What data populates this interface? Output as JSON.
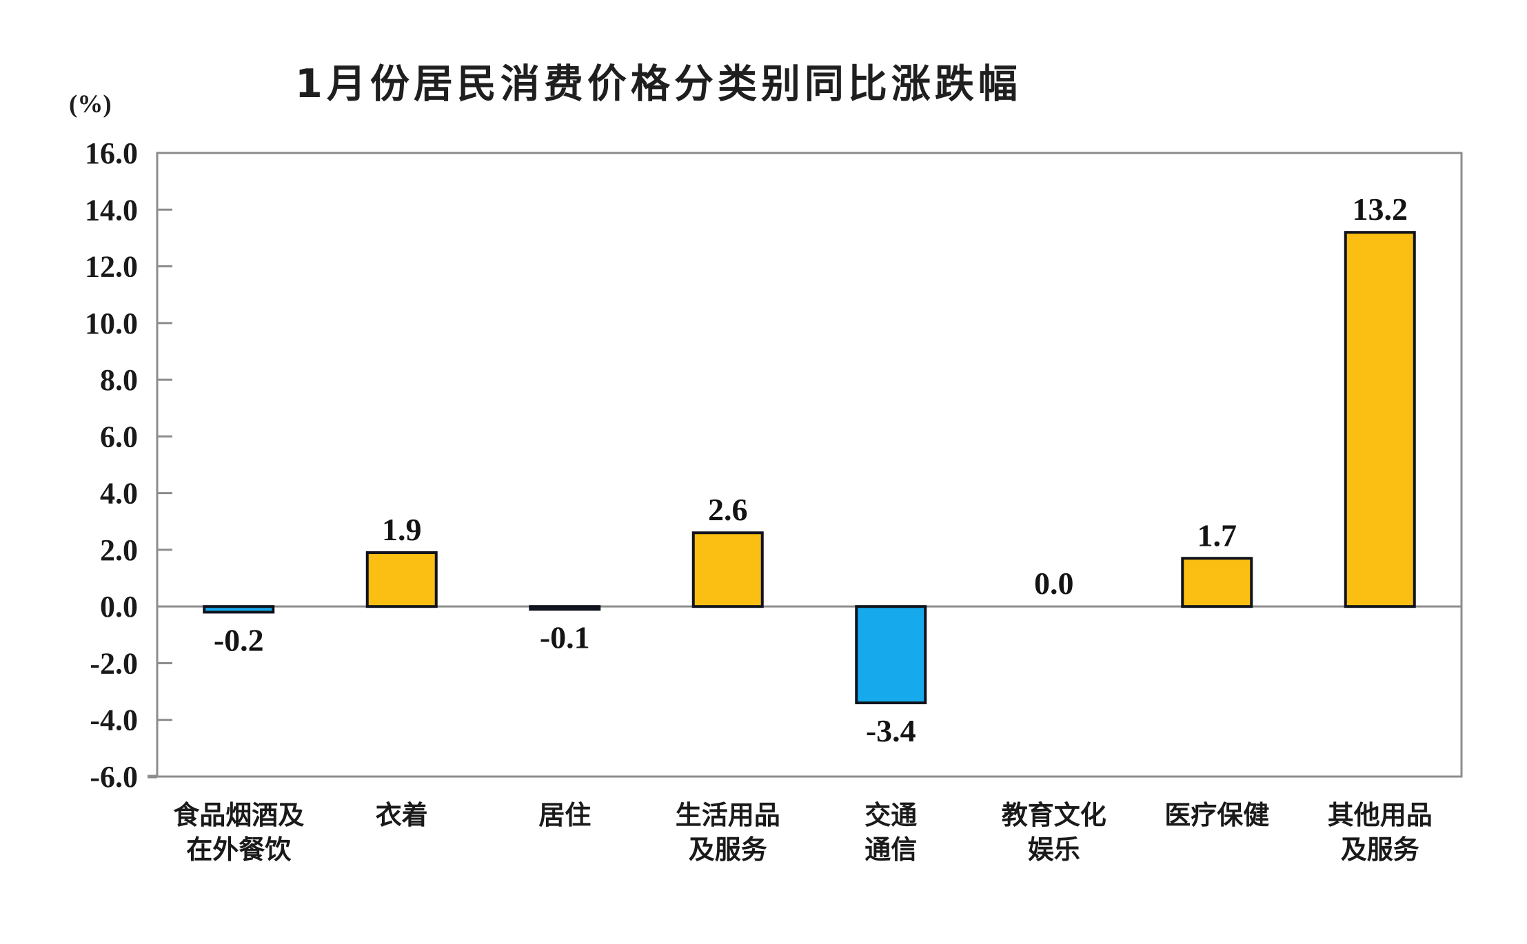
{
  "chart_data": {
    "type": "bar",
    "title": "1月份居民消费价格分类别同比涨跌幅",
    "ylabel_unit": "(%)",
    "categories": [
      "食品烟酒及在外餐饮",
      "衣着",
      "居住",
      "生活用品及服务",
      "交通通信",
      "教育文化娱乐",
      "医疗保健",
      "其他用品及服务"
    ],
    "category_lines": [
      [
        "食品烟酒及",
        "在外餐饮"
      ],
      [
        "衣着"
      ],
      [
        "居住"
      ],
      [
        "生活用品",
        "及服务"
      ],
      [
        "交通",
        "通信"
      ],
      [
        "教育文化",
        "娱乐"
      ],
      [
        "医疗保健"
      ],
      [
        "其他用品",
        "及服务"
      ]
    ],
    "values": [
      -0.2,
      1.9,
      -0.1,
      2.6,
      -3.4,
      0.0,
      1.7,
      13.2
    ],
    "value_labels": [
      "-0.2",
      "1.9",
      "-0.1",
      "2.6",
      "-3.4",
      "0.0",
      "1.7",
      "13.2"
    ],
    "ylim": [
      -6.0,
      16.0
    ],
    "ytick_step": 2.0,
    "ytick_labels": [
      "16.0",
      "14.0",
      "12.0",
      "10.0",
      "8.0",
      "6.0",
      "4.0",
      "2.0",
      "0.0",
      "-2.0",
      "-4.0",
      "-6.0"
    ],
    "grid": false,
    "legend": "none",
    "colors": {
      "positive_bar": "#FBBE12",
      "negative_bar": "#16AAEC",
      "bar_outline": "#10131C",
      "axis_line": "#8C8C8C",
      "label_text": "#1A1A1A"
    }
  }
}
